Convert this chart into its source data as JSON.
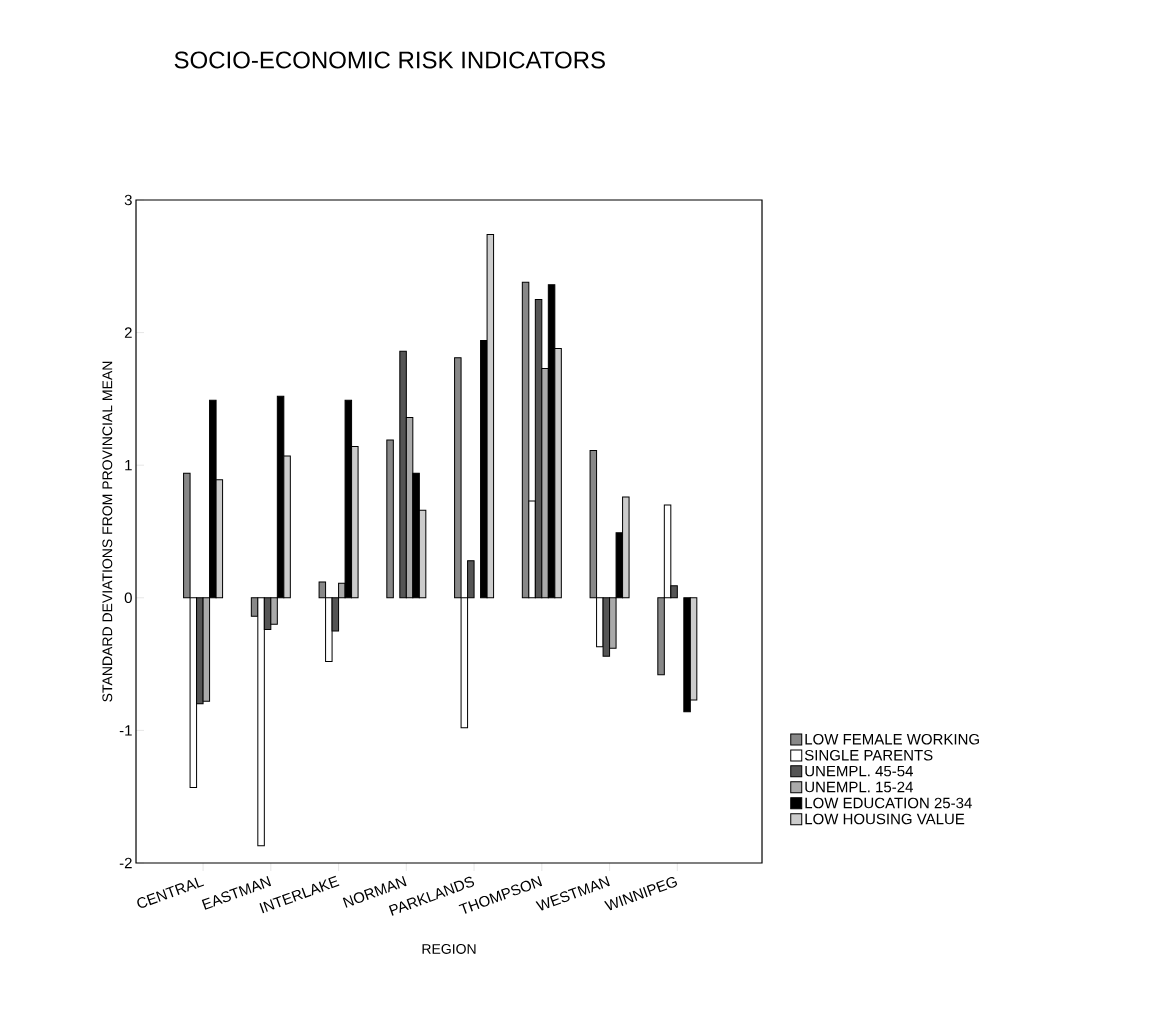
{
  "chart_data": {
    "type": "bar",
    "title": "SOCIO-ECONOMIC RISK INDICATORS",
    "xlabel": "REGION",
    "ylabel": "STANDARD DEVIATIONS FROM PROVINCIAL MEAN",
    "categories": [
      "CENTRAL",
      "EASTMAN",
      "INTERLAKE",
      "NORMAN",
      "PARKLANDS",
      "THOMPSON",
      "WESTMAN",
      "WINNIPEG"
    ],
    "series": [
      {
        "name": "LOW FEMALE WORKING",
        "color": "#888888",
        "values": [
          0.94,
          -0.14,
          0.12,
          1.19,
          1.81,
          2.38,
          1.11,
          -0.58
        ]
      },
      {
        "name": "SINGLE PARENTS",
        "color": "#ffffff",
        "values": [
          -1.43,
          -1.87,
          -0.48,
          null,
          -0.98,
          0.73,
          -0.37,
          0.7
        ]
      },
      {
        "name": "UNEMPL. 45-54",
        "color": "#555555",
        "values": [
          -0.8,
          -0.24,
          -0.25,
          1.86,
          0.28,
          2.25,
          -0.44,
          0.09
        ]
      },
      {
        "name": "UNEMPL. 15-24",
        "color": "#aaaaaa",
        "values": [
          -0.78,
          -0.2,
          0.11,
          1.36,
          null,
          1.73,
          -0.38,
          null
        ]
      },
      {
        "name": "LOW EDUCATION 25-34",
        "color": "#000000",
        "values": [
          1.49,
          1.52,
          1.49,
          0.94,
          1.94,
          2.36,
          0.49,
          -0.86
        ]
      },
      {
        "name": "LOW HOUSING VALUE",
        "color": "#cccccc",
        "values": [
          0.89,
          1.07,
          1.14,
          0.66,
          2.74,
          1.88,
          0.76,
          -0.77
        ]
      }
    ],
    "ylim": [
      -2,
      3
    ],
    "yticks": [
      -2,
      -1,
      0,
      1,
      2,
      3
    ],
    "grid": false,
    "legend": "right"
  }
}
